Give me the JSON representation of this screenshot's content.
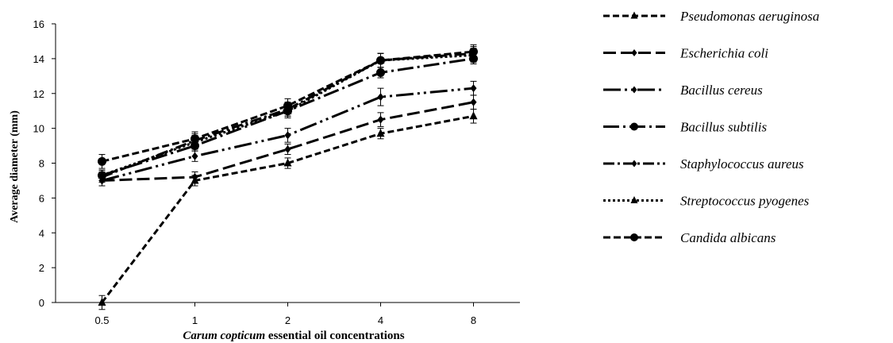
{
  "chart_data": {
    "type": "line",
    "categories": [
      "0.5",
      "1",
      "2",
      "4",
      "8"
    ],
    "ylabel": "Average diameter (mm)",
    "xlabel_italic": "Carum copticum",
    "xlabel_rest": "essential oil concentrations",
    "ylim": [
      0,
      16
    ],
    "yticks": [
      0,
      2,
      4,
      6,
      8,
      10,
      12,
      14,
      16
    ],
    "grid": false,
    "legend_position": "right",
    "series": [
      {
        "name": "Pseudomonas aeruginosa",
        "marker": "triangle",
        "dash": "8,4",
        "values": [
          0,
          7.0,
          8.0,
          9.7,
          10.7
        ],
        "errors": [
          0.4,
          0.3,
          0.3,
          0.3,
          0.4
        ]
      },
      {
        "name": "Escherichia coli",
        "marker": "diamond",
        "dash": "16,6",
        "values": [
          7.0,
          7.2,
          8.8,
          10.5,
          11.5
        ],
        "errors": [
          0.3,
          0.3,
          0.3,
          0.4,
          0.4
        ]
      },
      {
        "name": "Bacillus cereus",
        "marker": "diamond",
        "dash": "22,5,3,5,3,5",
        "values": [
          7.0,
          8.4,
          9.6,
          11.8,
          12.3
        ],
        "errors": [
          0.3,
          0.3,
          0.4,
          0.5,
          0.4
        ]
      },
      {
        "name": "Bacillus subtilis",
        "marker": "circle",
        "dash": "20,5,3,5",
        "values": [
          7.3,
          9.0,
          11.0,
          13.2,
          14.0
        ],
        "errors": [
          0.3,
          0.3,
          0.3,
          0.3,
          0.3
        ]
      },
      {
        "name": "Staphylococcus aureus",
        "marker": "diamond",
        "dash": "14,4,3,4",
        "values": [
          7.2,
          9.3,
          11.1,
          13.9,
          14.3
        ],
        "errors": [
          0.3,
          0.4,
          0.4,
          0.4,
          0.4
        ]
      },
      {
        "name": "Streptococcus pyogenes",
        "marker": "triangle",
        "dash": "3,3",
        "values": [
          7.3,
          9.2,
          11.0,
          13.9,
          14.2
        ],
        "errors": [
          0.3,
          0.4,
          0.4,
          0.4,
          0.4
        ]
      },
      {
        "name": "Candida albicans",
        "marker": "circle",
        "dash": "9,4",
        "values": [
          8.1,
          9.4,
          11.3,
          13.9,
          14.4
        ],
        "errors": [
          0.4,
          0.4,
          0.4,
          0.4,
          0.4
        ]
      }
    ]
  }
}
